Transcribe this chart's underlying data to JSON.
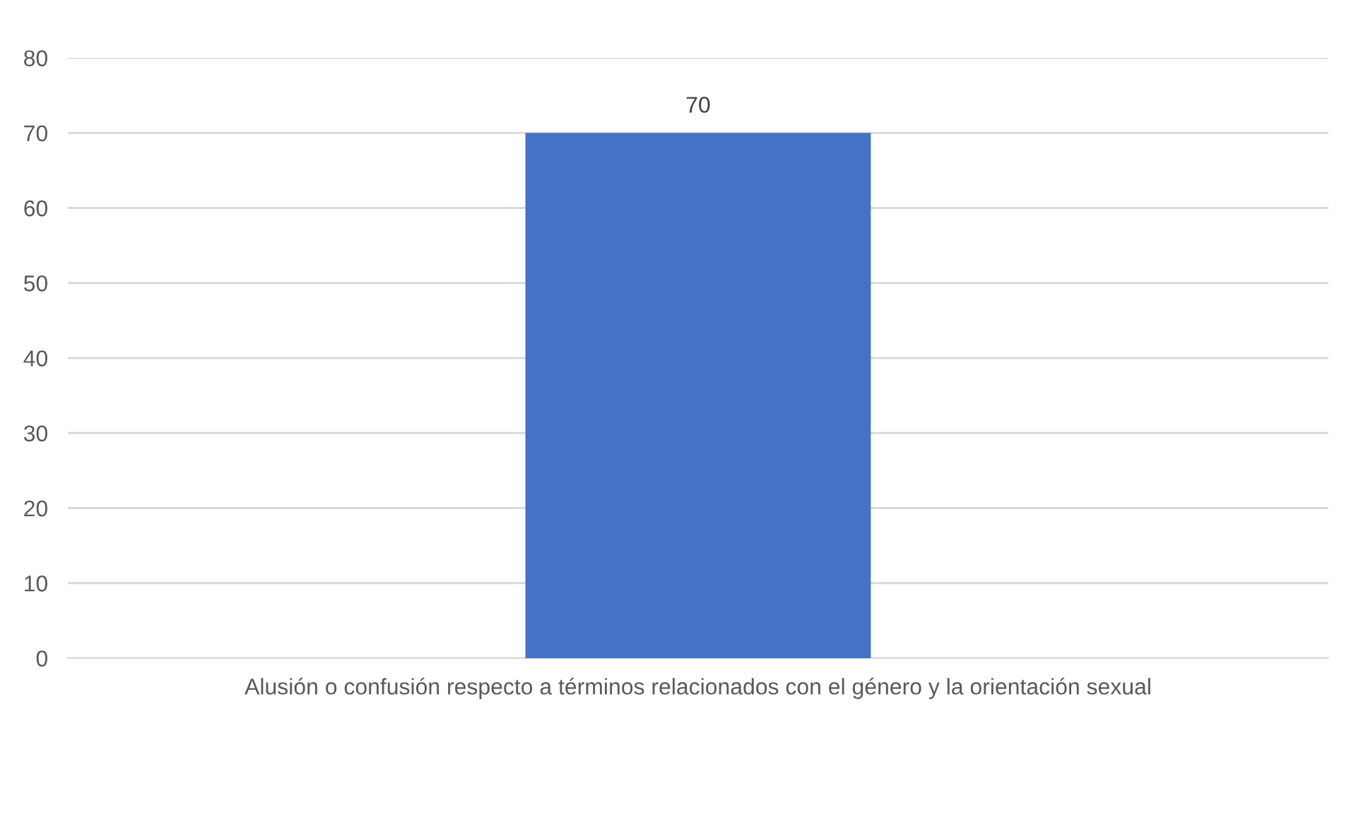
{
  "chart_data": {
    "type": "bar",
    "categories": [
      "Alusión o confusión respecto a términos relacionados con el género y la orientación sexual"
    ],
    "values": [
      70
    ],
    "color": "#4472c4",
    "ylim": [
      0,
      80
    ],
    "yticks": [
      0,
      10,
      20,
      30,
      40,
      50,
      60,
      70,
      80
    ],
    "grid": "y",
    "data_labels": true
  }
}
